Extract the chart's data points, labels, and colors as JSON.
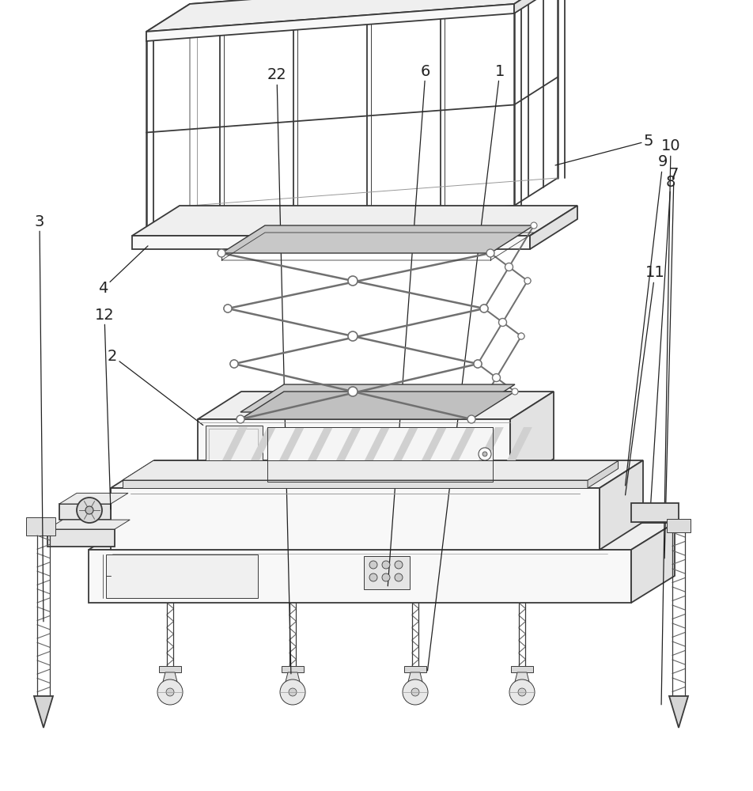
{
  "bg_color": "#ffffff",
  "lc": "#3a3a3a",
  "lc_light": "#999999",
  "lc_mid": "#666666",
  "lw": 1.3,
  "lwt": 0.7,
  "lw_beam": 1.8,
  "fontsize": 14,
  "fc_top": "#efefef",
  "fc_side": "#e2e2e2",
  "fc_right": "#d8d8d8",
  "fc_white": "#f8f8f8"
}
